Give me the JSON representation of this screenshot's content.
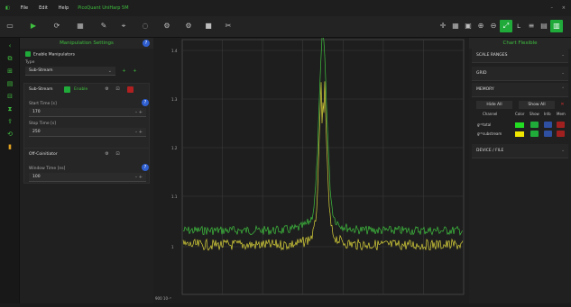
{
  "menu": {
    "file": "File",
    "edit": "Edit",
    "help": "Help",
    "app_title": "PicoQuant UniHarp 5M"
  },
  "left": {
    "header": "Manipulation Settings",
    "enable_label": "Enable Manipulators",
    "type_label": "Type",
    "type_value": "Sub-Stream",
    "substream": {
      "title": "Sub-Stream",
      "badge": "Enable",
      "start_label": "Start Time [s]",
      "start_value": "170",
      "stop_label": "Stop Time [s]",
      "stop_value": "250"
    },
    "g2": {
      "title": "Off-Coinitiator",
      "window_label": "Window Time [ns]",
      "window_value": "100"
    }
  },
  "chart": {
    "y_ticks": [
      "1.4",
      "1.3",
      "1.2",
      "1.1",
      "1"
    ],
    "x_label": "900 10⁻³",
    "series": [
      {
        "color": "#3fbf3f"
      },
      {
        "color": "#d8d23a"
      }
    ]
  },
  "right": {
    "header": "Chart Flexible",
    "scale_ranges": "SCALE RANGES",
    "grid": "GRID",
    "memory": "MEMORY",
    "hide_all": "Hide All",
    "show_all": "Show All",
    "cols": [
      "Channel",
      "Color",
      "Show",
      "Info",
      "Mem"
    ],
    "channels": [
      "g⁽²⁾total",
      "g⁽²⁾substream"
    ],
    "colors": [
      "#22dd22",
      "#f0e600"
    ],
    "device": "DEVICE / FILE"
  },
  "colors": {
    "accent": "#1faa3a",
    "background": "#1b1b1b"
  }
}
